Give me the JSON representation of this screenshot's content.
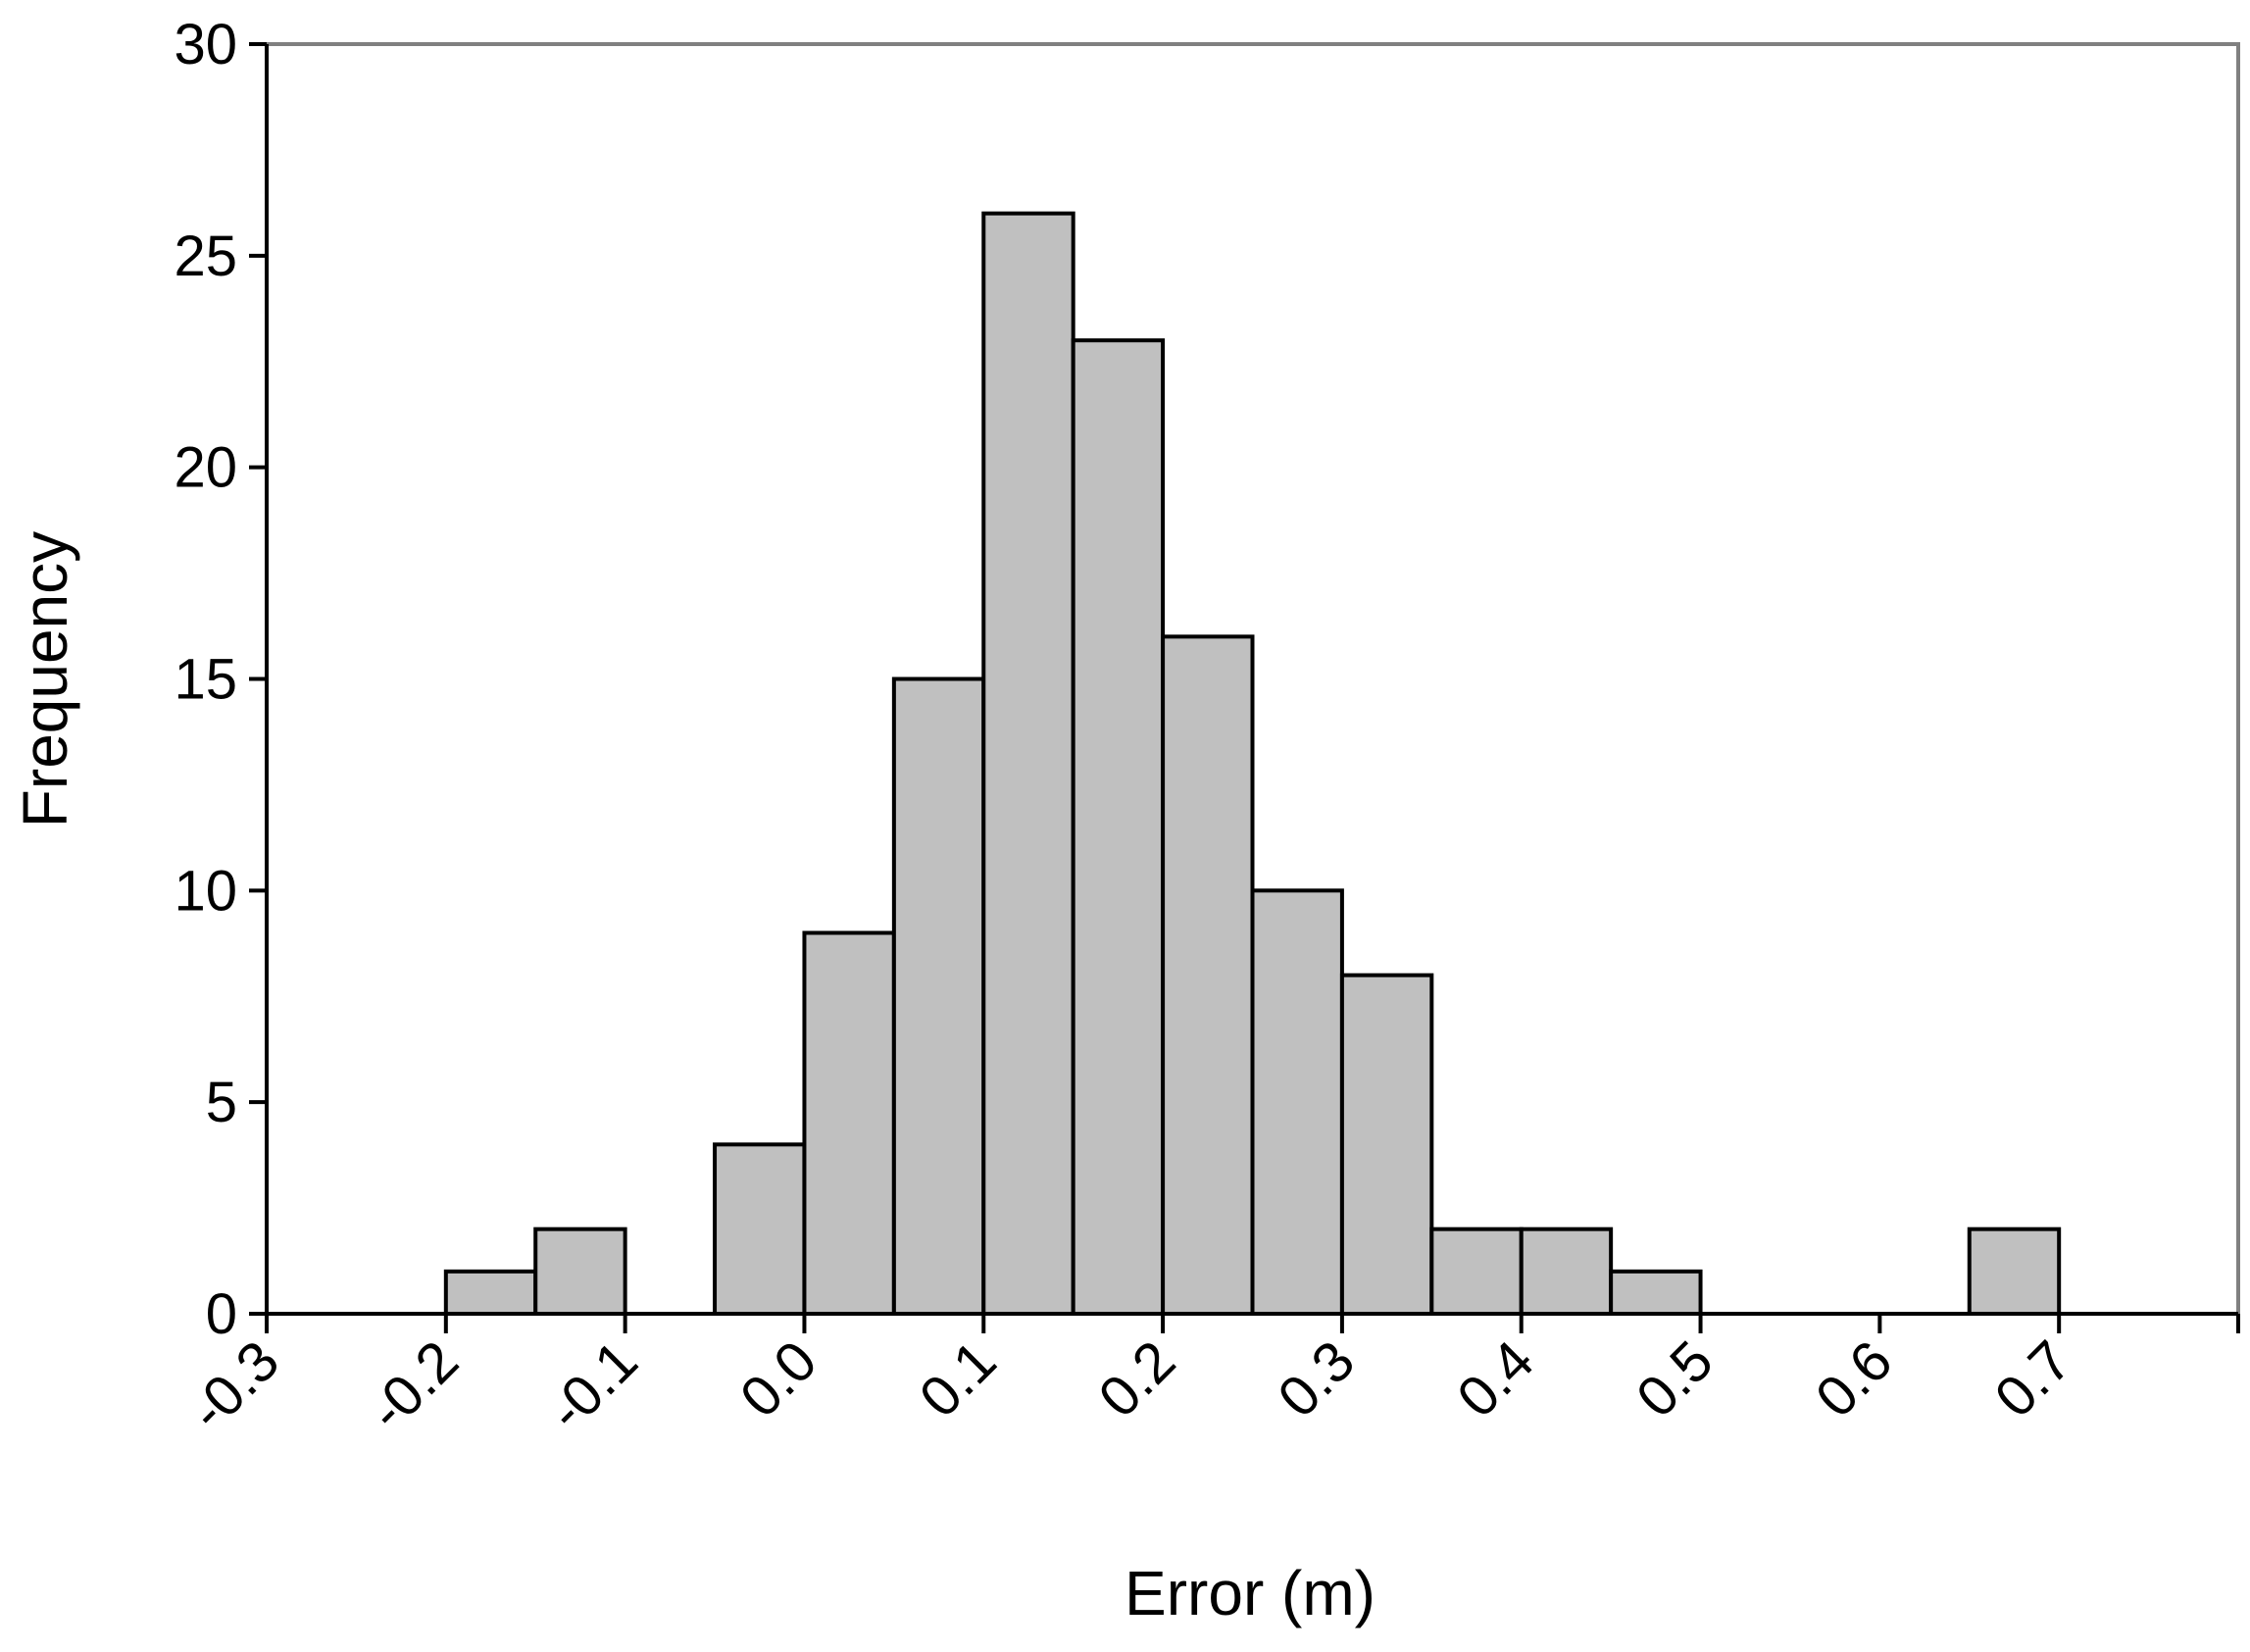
{
  "chart_data": {
    "type": "bar",
    "subtype": "histogram",
    "title": "",
    "xlabel": "Error (m)",
    "ylabel": "Frequency",
    "xlim": [
      -0.3,
      0.8
    ],
    "ylim": [
      0,
      30
    ],
    "bin_width": 0.05,
    "x_ticks": [
      "-0.3",
      "-0.2",
      "-0.1",
      "0.0",
      "0.1",
      "0.2",
      "0.3",
      "0.4",
      "0.5",
      "0.6",
      "0.7"
    ],
    "y_ticks": [
      "0",
      "5",
      "10",
      "15",
      "20",
      "25",
      "30"
    ],
    "bins": [
      {
        "start": -0.2,
        "end": -0.15,
        "count": 1
      },
      {
        "start": -0.15,
        "end": -0.1,
        "count": 2
      },
      {
        "start": -0.05,
        "end": 0.0,
        "count": 4
      },
      {
        "start": 0.0,
        "end": 0.05,
        "count": 9
      },
      {
        "start": 0.05,
        "end": 0.1,
        "count": 15
      },
      {
        "start": 0.1,
        "end": 0.15,
        "count": 26
      },
      {
        "start": 0.15,
        "end": 0.2,
        "count": 23
      },
      {
        "start": 0.2,
        "end": 0.25,
        "count": 16
      },
      {
        "start": 0.25,
        "end": 0.3,
        "count": 10
      },
      {
        "start": 0.3,
        "end": 0.35,
        "count": 8
      },
      {
        "start": 0.35,
        "end": 0.4,
        "count": 2
      },
      {
        "start": 0.4,
        "end": 0.45,
        "count": 2
      },
      {
        "start": 0.45,
        "end": 0.5,
        "count": 1
      },
      {
        "start": 0.65,
        "end": 0.7,
        "count": 2
      }
    ],
    "grid": false,
    "legend": "none",
    "bar_fill": "#c0c0c0",
    "bar_stroke": "#000000",
    "frame_color": "#808080"
  }
}
